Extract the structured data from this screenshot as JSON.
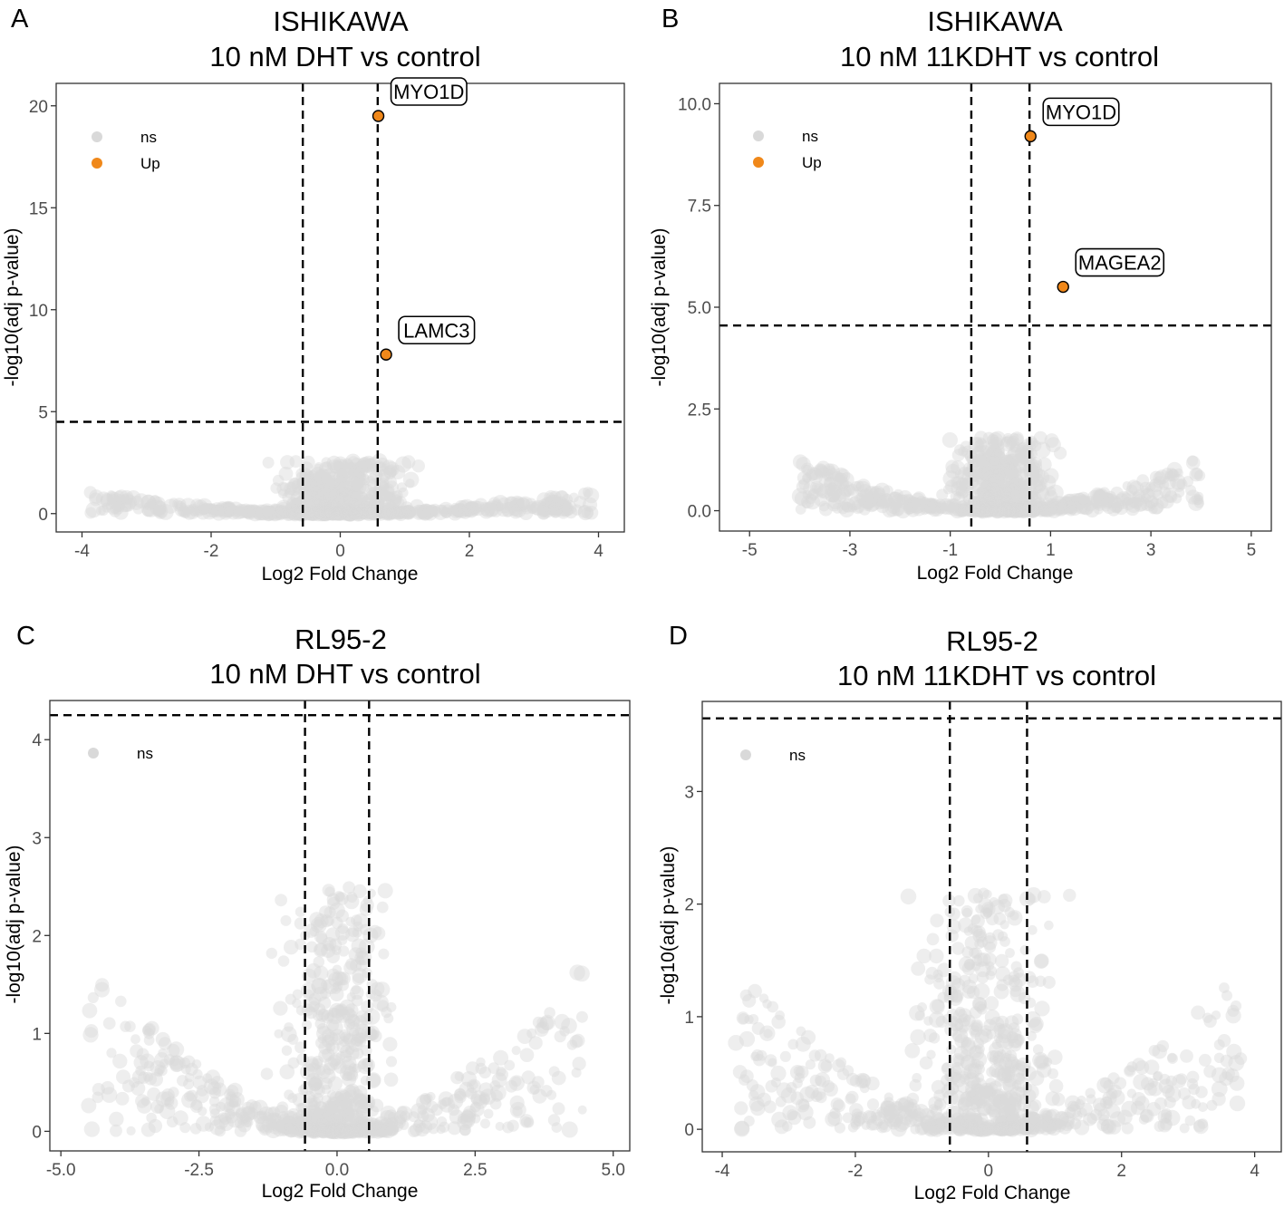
{
  "colors": {
    "ns": "#d9d9d9",
    "up": "#f0881a",
    "axis": "#333333",
    "tick_text": "#4d4d4d",
    "threshold": "#000000"
  },
  "chart_data": [
    {
      "panel": "A",
      "type": "scatter",
      "title": [
        "ISHIKAWA",
        "10 nM DHT vs control"
      ],
      "xlabel": "Log2 Fold Change",
      "ylabel": "-log10(adj p-value)",
      "xlim": [
        -4.4,
        4.4
      ],
      "ylim": [
        -0.9,
        21.1
      ],
      "xticks": [
        -4,
        -2,
        0,
        2,
        4
      ],
      "xtick_labels": [
        "-4",
        "-2",
        "0",
        "2",
        "4"
      ],
      "yticks": [
        0,
        5,
        10,
        15,
        20
      ],
      "ytick_labels": [
        "0",
        "5",
        "10",
        "15",
        "20"
      ],
      "vlines": [
        -0.58,
        0.58
      ],
      "hline": 4.5,
      "legend": [
        {
          "label": "ns",
          "key": "ns"
        },
        {
          "label": "Up",
          "key": "up"
        }
      ],
      "ns_cloud": {
        "xmax": 3.9,
        "ymax_at_center": 2.6,
        "edge_y": 1.0
      },
      "up_points": [
        {
          "x": 0.59,
          "y": 19.5,
          "label": "MYO1D"
        },
        {
          "x": 0.71,
          "y": 7.8,
          "label": "LAMC3"
        }
      ]
    },
    {
      "panel": "B",
      "type": "scatter",
      "title": [
        "ISHIKAWA",
        "10 nM 11KDHT vs control"
      ],
      "xlabel": "Log2 Fold Change",
      "ylabel": "-log10(adj p-value)",
      "xlim": [
        -5.6,
        5.4
      ],
      "ylim": [
        -0.5,
        10.5
      ],
      "xticks": [
        -5,
        -3,
        -1,
        1,
        3,
        5
      ],
      "xtick_labels": [
        "-5",
        "-3",
        "-1",
        "1",
        "3",
        "5"
      ],
      "yticks": [
        0,
        2.5,
        5,
        7.5,
        10
      ],
      "ytick_labels": [
        "0.0",
        "2.5",
        "5.0",
        "7.5",
        "10.0"
      ],
      "vlines": [
        -0.58,
        0.58
      ],
      "hline": 4.55,
      "legend": [
        {
          "label": "ns",
          "key": "ns"
        },
        {
          "label": "Up",
          "key": "up"
        }
      ],
      "ns_cloud": {
        "xmax": 4.0,
        "ymax_at_center": 1.8,
        "edge_y": 1.2
      },
      "up_points": [
        {
          "x": 0.6,
          "y": 9.2,
          "label": "MYO1D"
        },
        {
          "x": 1.25,
          "y": 5.5,
          "label": "MAGEA2"
        }
      ]
    },
    {
      "panel": "C",
      "type": "scatter",
      "title": [
        "RL95-2",
        "10 nM DHT vs control"
      ],
      "xlabel": "Log2 Fold Change",
      "ylabel": "-log10(adj p-value)",
      "xlim": [
        -5.2,
        5.3
      ],
      "ylim": [
        -0.2,
        4.4
      ],
      "xticks": [
        -5,
        -2.5,
        0,
        2.5,
        5
      ],
      "xtick_labels": [
        "-5.0",
        "-2.5",
        "0.0",
        "2.5",
        "5.0"
      ],
      "yticks": [
        0,
        1,
        2,
        3,
        4
      ],
      "ytick_labels": [
        "0",
        "1",
        "2",
        "3",
        "4"
      ],
      "vlines": [
        -0.58,
        0.58
      ],
      "hline": 4.25,
      "legend": [
        {
          "label": "ns",
          "key": "ns"
        }
      ],
      "ns_cloud": {
        "xmax": 4.5,
        "ymax_at_center": 2.5,
        "edge_y": 1.6
      },
      "up_points": []
    },
    {
      "panel": "D",
      "type": "scatter",
      "title": [
        "RL95-2",
        "10 nM 11KDHT vs control"
      ],
      "xlabel": "Log2 Fold Change",
      "ylabel": "-log10(adj p-value)",
      "xlim": [
        -4.3,
        4.4
      ],
      "ylim": [
        -0.2,
        3.8
      ],
      "xticks": [
        -4,
        -2,
        0,
        2,
        4
      ],
      "xtick_labels": [
        "-4",
        "-2",
        "0",
        "2",
        "4"
      ],
      "yticks": [
        0,
        1,
        2,
        3
      ],
      "ytick_labels": [
        "0",
        "1",
        "2",
        "3"
      ],
      "vlines": [
        -0.58,
        0.58
      ],
      "hline": 3.65,
      "legend": [
        {
          "label": "ns",
          "key": "ns"
        }
      ],
      "ns_cloud": {
        "xmax": 3.8,
        "ymax_at_center": 2.1,
        "edge_y": 1.3
      },
      "up_points": []
    }
  ]
}
